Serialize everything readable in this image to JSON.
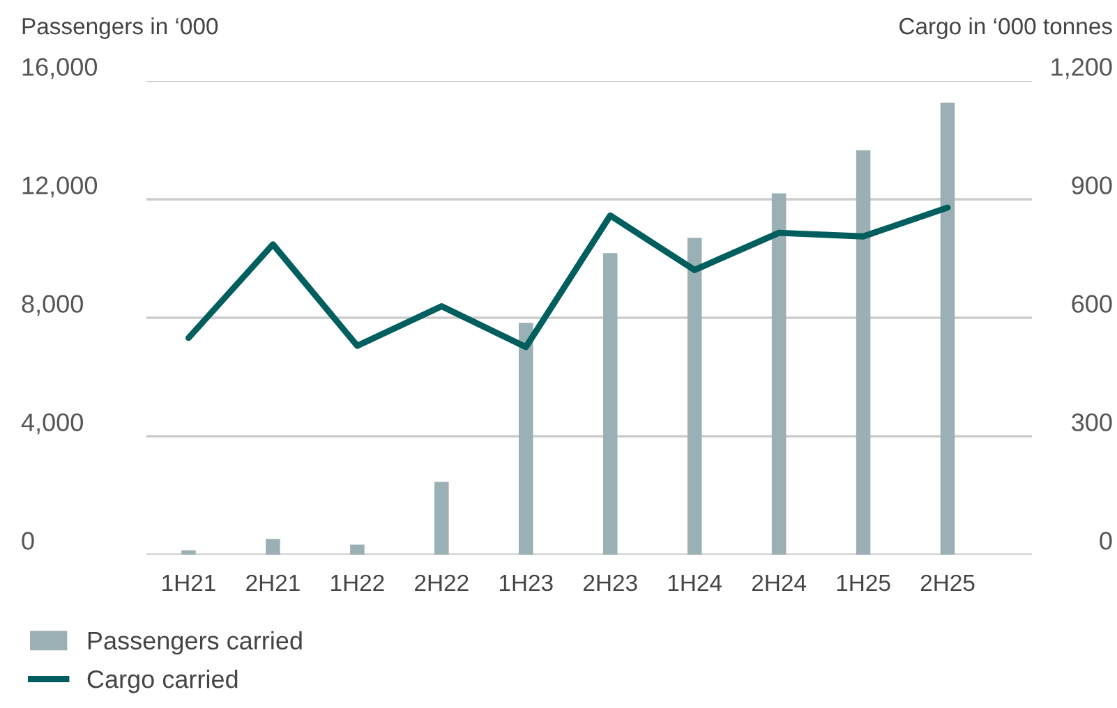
{
  "chart_data": {
    "type": "bar",
    "ylabel": "Passengers in ‘000",
    "y2label": "Cargo in ‘000 tonnes",
    "categories": [
      "1H21",
      "2H21",
      "1H22",
      "2H22",
      "1H23",
      "2H23",
      "1H24",
      "2H24",
      "1H25",
      "2H25"
    ],
    "series": [
      {
        "name": "Passengers carried",
        "color": "#9bb0b4",
        "values": [
          150,
          530,
          340,
          2460,
          7830,
          10180,
          10700,
          12200,
          13660,
          15260
        ]
      },
      {
        "name": "Cargo carried",
        "type": "line",
        "axis": "y2",
        "color": "#005e5e",
        "values": [
          549,
          786,
          529,
          629,
          526,
          859,
          721,
          815,
          806,
          879
        ]
      }
    ],
    "ylim": [
      0,
      16000
    ],
    "yticks": [
      {
        "value": 0,
        "label": "0"
      },
      {
        "value": 4000,
        "label": "4,000"
      },
      {
        "value": 8000,
        "label": "8,000"
      },
      {
        "value": 12000,
        "label": "12,000"
      },
      {
        "value": 16000,
        "label": "16,000"
      }
    ],
    "y2lim": [
      0,
      1200
    ],
    "y2ticks": [
      {
        "value": 0,
        "label": "0"
      },
      {
        "value": 300,
        "label": "300"
      },
      {
        "value": 600,
        "label": "600"
      },
      {
        "value": 900,
        "label": "900"
      },
      {
        "value": 1200,
        "label": "1,200"
      }
    ],
    "grid": "y",
    "legend": "bottom left",
    "line_style": "solid",
    "marker": "none"
  }
}
